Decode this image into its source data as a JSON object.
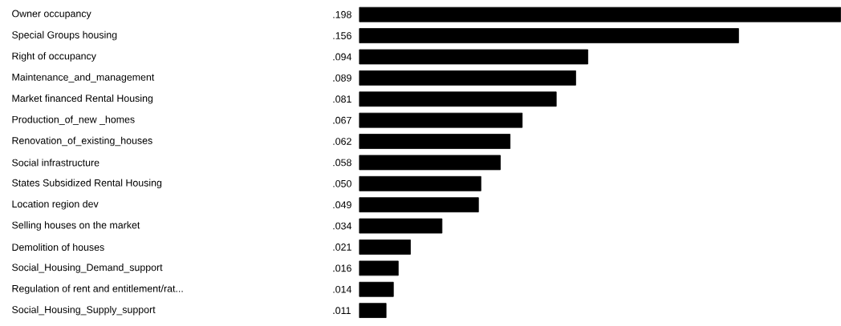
{
  "chart_data": {
    "type": "bar",
    "orientation": "horizontal",
    "color": "#000000",
    "categories": [
      "Owner occupancy",
      "Special Groups housing",
      "Right of occupancy",
      "Maintenance_and_management",
      "Market financed Rental Housing",
      "Production_of_new _homes",
      "Renovation_of_existing_houses",
      "Social infrastructure",
      "States Subsidized Rental Housing",
      "Location region dev",
      "Selling houses on the market",
      "Demolition of houses",
      "Social_Housing_Demand_support",
      "Regulation of rent and entitlement/rat...",
      "Social_Housing_Supply_support"
    ],
    "values": [
      0.198,
      0.156,
      0.094,
      0.089,
      0.081,
      0.067,
      0.062,
      0.058,
      0.05,
      0.049,
      0.034,
      0.021,
      0.016,
      0.014,
      0.011
    ],
    "value_labels": [
      ".198",
      ".156",
      ".094",
      ".089",
      ".081",
      ".067",
      ".062",
      ".058",
      ".050",
      ".049",
      ".034",
      ".021",
      ".016",
      ".014",
      ".011"
    ]
  }
}
